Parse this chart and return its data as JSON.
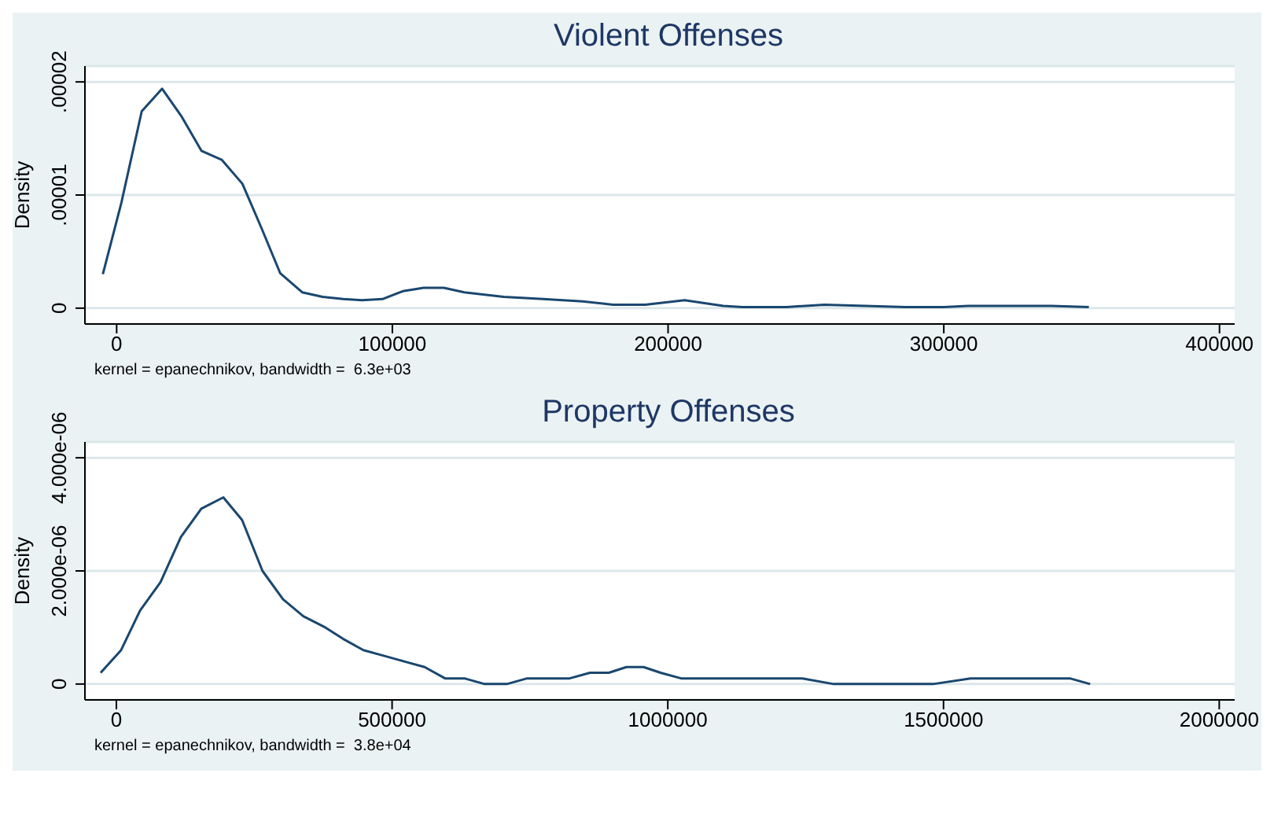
{
  "chart_data": [
    {
      "type": "line",
      "title": "Violent Offenses",
      "ylabel": "Density",
      "annotations": [
        "kernel = epanechnikov, bandwidth =  6.3e+03"
      ],
      "grid": "y",
      "xlim": [
        -11500,
        405500
      ],
      "xticks": [
        0,
        100000,
        200000,
        300000,
        400000
      ],
      "ylim": [
        -1.4e-06,
        2.14e-05
      ],
      "yticks": [
        {
          "value": 0,
          "label": "0"
        },
        {
          "value": 1e-05,
          "label": ".00001"
        },
        {
          "value": 2e-05,
          "label": ".00002"
        }
      ],
      "series": [
        {
          "color": "#1a476f",
          "x": [
            -5000,
            1700,
            9100,
            16500,
            23400,
            30800,
            38200,
            45600,
            52500,
            59300,
            67300,
            74700,
            82200,
            89000,
            96400,
            103800,
            111300,
            118700,
            126100,
            140400,
            154700,
            169000,
            180000,
            191700,
            206000,
            220000,
            227000,
            243000,
            256700,
            271500,
            286000,
            300000,
            308800,
            328800,
            339000,
            352600
          ],
          "values": [
            3e-06,
            9.3e-06,
            1.74e-05,
            1.94e-05,
            1.7e-05,
            1.39e-05,
            1.31e-05,
            1.1e-05,
            7.1e-06,
            3.1e-06,
            1.4e-06,
            1e-06,
            8e-07,
            7e-07,
            8e-07,
            1.5e-06,
            1.8e-06,
            1.8e-06,
            1.4e-06,
            1e-06,
            8e-07,
            6e-07,
            3e-07,
            3e-07,
            7e-07,
            2e-07,
            1e-07,
            1e-07,
            3e-07,
            2e-07,
            1e-07,
            1e-07,
            2e-07,
            2e-07,
            2e-07,
            1e-07
          ]
        }
      ]
    },
    {
      "type": "line",
      "title": "Property Offenses",
      "ylabel": "Density",
      "annotations": [
        "kernel = epanechnikov, bandwidth =  3.8e+04"
      ],
      "grid": "y",
      "xlim": [
        -57000,
        2028000
      ],
      "xticks": [
        0,
        500000,
        1000000,
        1500000,
        2000000
      ],
      "ylim": [
        -2.8e-07,
        4.28e-06
      ],
      "yticks": [
        {
          "value": 0,
          "label": "0"
        },
        {
          "value": 2e-06,
          "label": "2.000e-06"
        },
        {
          "value": 4e-06,
          "label": "4.000e-06"
        }
      ],
      "series": [
        {
          "color": "#1a476f",
          "x": [
            -28500,
            8600,
            43000,
            80000,
            117000,
            154000,
            194000,
            228000,
            265000,
            302000,
            339000,
            379000,
            411000,
            448000,
            485000,
            522000,
            559000,
            596000,
            631000,
            668000,
            708000,
            745000,
            782000,
            822000,
            859000,
            893000,
            925000,
            956000,
            987000,
            1024000,
            1067000,
            1121000,
            1178000,
            1244000,
            1301000,
            1358000,
            1424000,
            1481000,
            1549000,
            1595000,
            1652000,
            1729000,
            1766000
          ],
          "values": [
            2e-07,
            6e-07,
            1.3e-06,
            1.8e-06,
            2.6e-06,
            3.1e-06,
            3.3e-06,
            2.9e-06,
            2e-06,
            1.5e-06,
            1.2e-06,
            1e-06,
            8e-07,
            6e-07,
            5e-07,
            4e-07,
            3e-07,
            1e-07,
            1e-07,
            0,
            0,
            1e-07,
            1e-07,
            1e-07,
            2e-07,
            2e-07,
            3e-07,
            3e-07,
            2e-07,
            1e-07,
            1e-07,
            1e-07,
            1e-07,
            1e-07,
            0,
            0,
            0,
            0,
            1e-07,
            1e-07,
            1e-07,
            1e-07,
            0
          ]
        }
      ]
    }
  ]
}
